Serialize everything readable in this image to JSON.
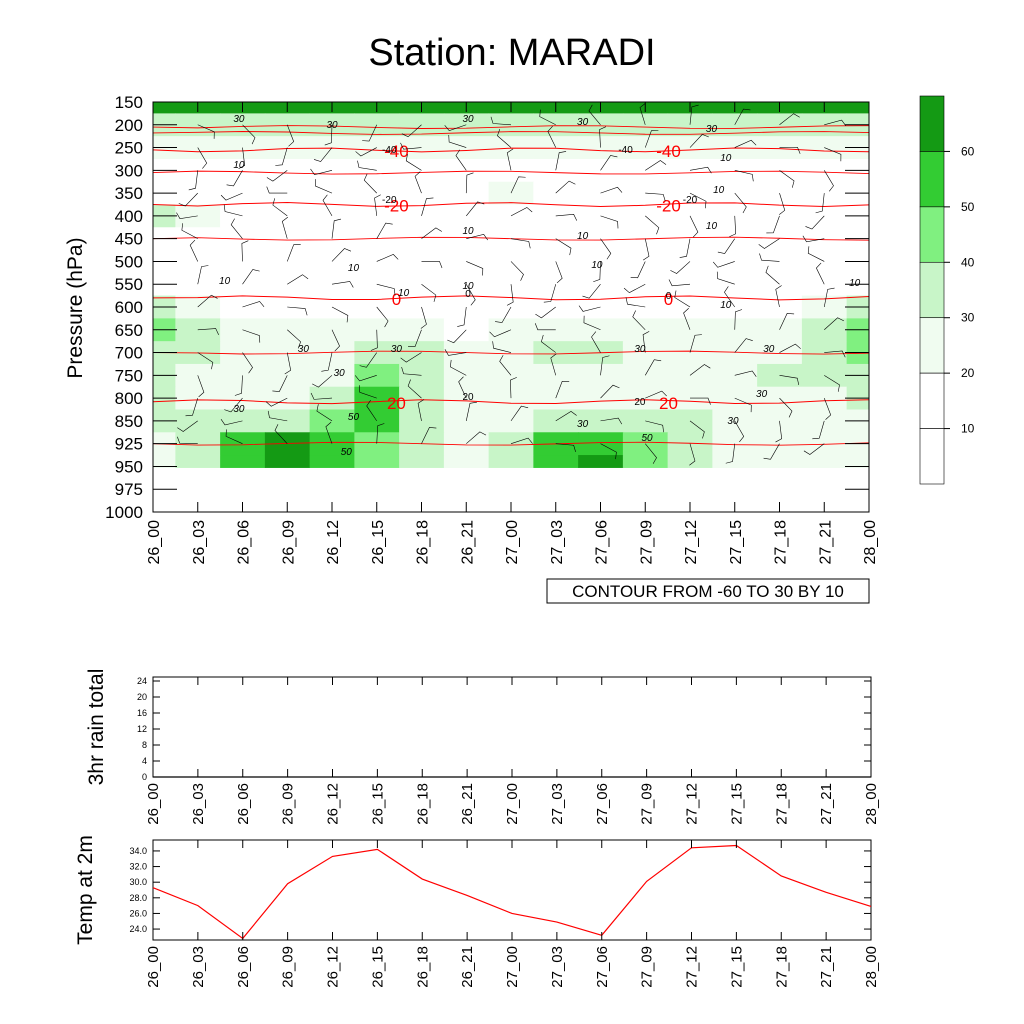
{
  "title": "Station: MARADI",
  "colors": {
    "green_levels": [
      "#ffffff",
      "#f0fcf0",
      "#c8f5c8",
      "#80f080",
      "#33cc33",
      "#149a14"
    ],
    "temp_line": "#ff0000",
    "contour_line": "#000000",
    "wind_barb": "#000000"
  },
  "chart_data": [
    {
      "type": "heatmap",
      "name": "pressure-time-section",
      "ylabel": "Pressure (hPa)",
      "xlabel": "",
      "x_ticks": [
        "26_00",
        "26_03",
        "26_06",
        "26_09",
        "26_12",
        "26_15",
        "26_18",
        "26_21",
        "27_00",
        "27_03",
        "27_06",
        "27_09",
        "27_12",
        "27_15",
        "27_18",
        "27_21",
        "28_00"
      ],
      "y_ticks": [
        "150",
        "200",
        "250",
        "300",
        "350",
        "400",
        "450",
        "500",
        "550",
        "600",
        "650",
        "700",
        "750",
        "800",
        "850",
        "925",
        "950",
        "975",
        "1000"
      ],
      "ylim": [
        150,
        1000
      ],
      "colorbar": {
        "labels": [
          "10",
          "20",
          "30",
          "40",
          "50",
          "60"
        ],
        "levels": [
          10,
          20,
          30,
          40,
          50,
          60
        ]
      },
      "shaded_rh_levels_by_pressure": {
        "150": [
          60,
          60,
          60,
          60,
          60,
          60,
          60,
          60,
          60,
          60,
          60,
          60,
          60,
          60,
          60,
          60,
          60
        ],
        "200": [
          30,
          30,
          30,
          30,
          30,
          30,
          30,
          30,
          30,
          30,
          30,
          30,
          30,
          30,
          30,
          30,
          30
        ],
        "250": [
          20,
          20,
          20,
          20,
          20,
          20,
          20,
          20,
          20,
          20,
          20,
          20,
          20,
          20,
          20,
          20,
          20
        ],
        "300": [
          10,
          10,
          10,
          10,
          10,
          10,
          10,
          10,
          10,
          10,
          10,
          10,
          10,
          10,
          10,
          10,
          10
        ],
        "350": [
          10,
          10,
          10,
          10,
          10,
          10,
          10,
          10,
          20,
          10,
          10,
          10,
          10,
          10,
          10,
          10,
          10
        ],
        "400": [
          30,
          20,
          10,
          10,
          10,
          10,
          10,
          10,
          10,
          10,
          10,
          10,
          10,
          10,
          10,
          10,
          10
        ],
        "450": [
          10,
          10,
          10,
          10,
          10,
          10,
          10,
          10,
          10,
          10,
          10,
          10,
          10,
          10,
          10,
          10,
          10
        ],
        "500": [
          10,
          10,
          10,
          10,
          10,
          10,
          10,
          10,
          10,
          10,
          10,
          10,
          10,
          10,
          10,
          10,
          10
        ],
        "550": [
          10,
          10,
          10,
          10,
          10,
          10,
          10,
          10,
          10,
          10,
          10,
          10,
          10,
          10,
          10,
          10,
          10
        ],
        "600": [
          30,
          20,
          10,
          10,
          10,
          10,
          10,
          10,
          10,
          10,
          10,
          10,
          10,
          10,
          10,
          20,
          30
        ],
        "650": [
          40,
          30,
          20,
          20,
          20,
          20,
          20,
          10,
          20,
          20,
          20,
          20,
          20,
          20,
          20,
          30,
          40
        ],
        "700": [
          30,
          30,
          20,
          20,
          20,
          30,
          30,
          20,
          20,
          30,
          30,
          20,
          20,
          20,
          20,
          30,
          40
        ],
        "750": [
          30,
          20,
          20,
          20,
          20,
          40,
          30,
          20,
          20,
          20,
          20,
          20,
          20,
          20,
          30,
          30,
          30
        ],
        "800": [
          30,
          20,
          20,
          20,
          30,
          50,
          30,
          20,
          20,
          20,
          20,
          20,
          20,
          20,
          20,
          20,
          30
        ],
        "850": [
          30,
          30,
          30,
          30,
          40,
          50,
          30,
          20,
          20,
          30,
          30,
          30,
          30,
          20,
          20,
          20,
          20
        ],
        "925": [
          20,
          30,
          50,
          60,
          50,
          40,
          30,
          20,
          30,
          50,
          50,
          40,
          30,
          20,
          20,
          20,
          20
        ],
        "950": [
          20,
          30,
          50,
          60,
          50,
          40,
          30,
          20,
          30,
          50,
          60,
          40,
          30,
          20,
          20,
          20,
          20
        ]
      },
      "contour_labels": [
        "30",
        "30",
        "30",
        "30",
        "30",
        "-40",
        "-40",
        "10",
        "10",
        "-20",
        "-20",
        "10",
        "10",
        "10",
        "10",
        "10",
        "10",
        "10",
        "10",
        "10",
        "10",
        "0",
        "0",
        "10",
        "30",
        "30",
        "30",
        "30",
        "30",
        "30",
        "30",
        "30",
        "30",
        "50",
        "20",
        "20",
        "50",
        "50"
      ],
      "temperature_contours": [
        {
          "label": "-40",
          "pressure": 255
        },
        {
          "label": "-20",
          "pressure": 375
        },
        {
          "label": "0",
          "pressure": 580
        },
        {
          "label": "20",
          "pressure": 808
        }
      ],
      "annotation": "CONTOUR FROM -60 TO 30 BY 10"
    },
    {
      "type": "line",
      "name": "rain-panel",
      "ylabel": "3hr rain total",
      "categories": [
        "26_00",
        "26_03",
        "26_06",
        "26_09",
        "26_12",
        "26_15",
        "26_18",
        "26_21",
        "27_00",
        "27_03",
        "27_06",
        "27_09",
        "27_12",
        "27_15",
        "27_18",
        "27_21",
        "28_00"
      ],
      "y_ticks": [
        "0",
        "4",
        "8",
        "12",
        "16",
        "20",
        "24"
      ],
      "ylim": [
        0,
        25
      ],
      "values": [
        0,
        0,
        0,
        0,
        0,
        0,
        0,
        0,
        0,
        0,
        0,
        0,
        0,
        0,
        0,
        0,
        0
      ]
    },
    {
      "type": "line",
      "name": "temp-panel",
      "ylabel": "Temp at 2m",
      "categories": [
        "26_00",
        "26_03",
        "26_06",
        "26_09",
        "26_12",
        "26_15",
        "26_18",
        "26_21",
        "27_00",
        "27_03",
        "27_06",
        "27_09",
        "27_12",
        "27_15",
        "27_18",
        "27_21",
        "28_00"
      ],
      "y_ticks": [
        "24.0",
        "26.0",
        "28.0",
        "30.0",
        "32.0",
        "34.0"
      ],
      "ylim": [
        22.6,
        35.4
      ],
      "values": [
        29.3,
        27.0,
        22.8,
        29.8,
        33.3,
        34.2,
        30.4,
        28.3,
        26.0,
        24.9,
        23.2,
        30.1,
        34.4,
        34.7,
        30.8,
        28.7,
        26.9
      ]
    }
  ]
}
